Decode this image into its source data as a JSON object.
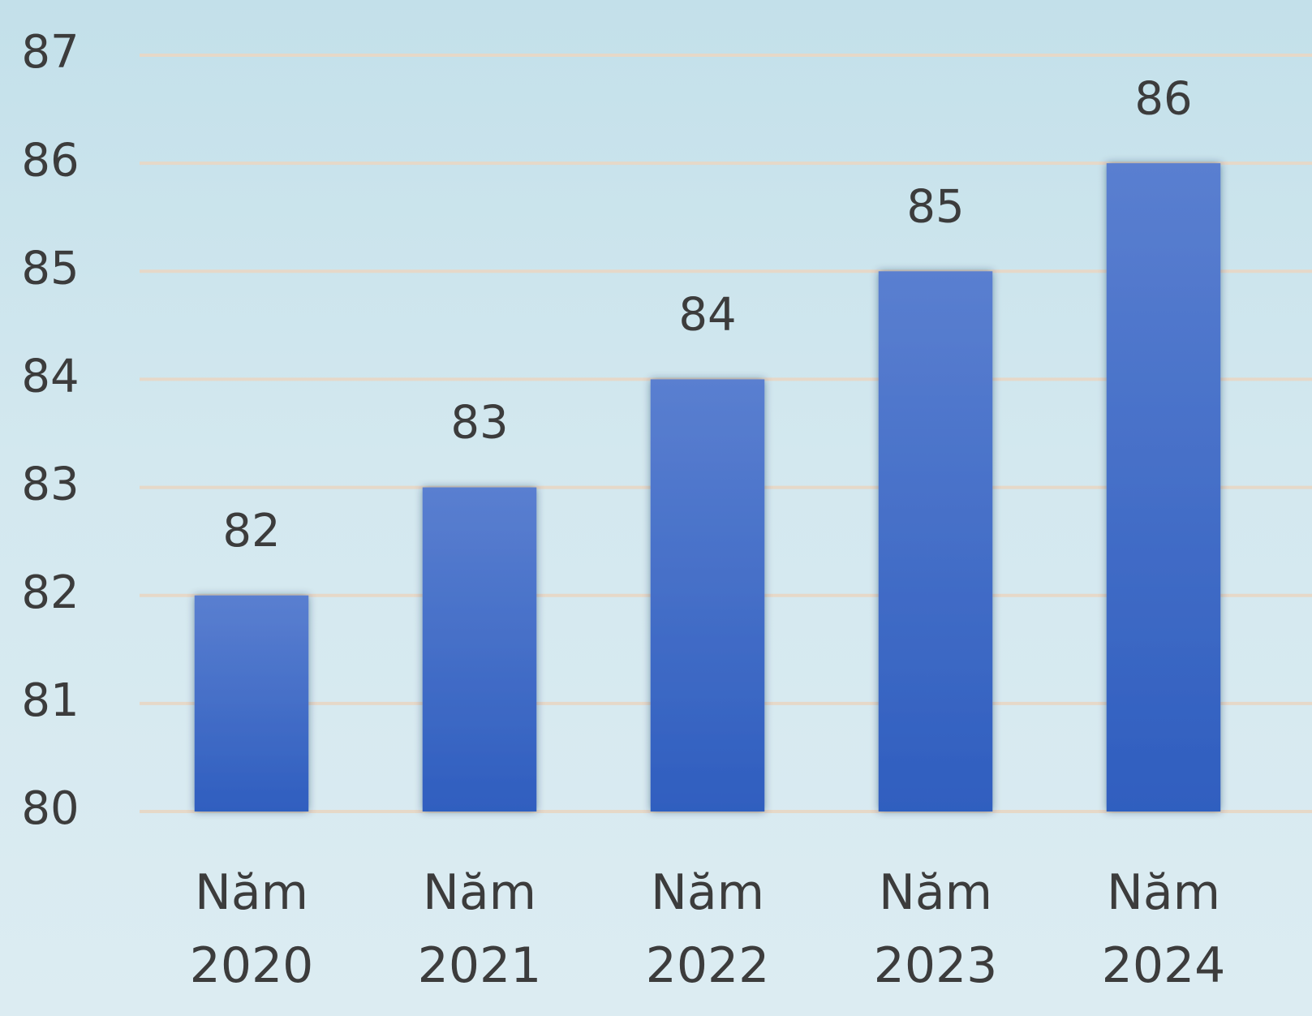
{
  "chart_data": {
    "type": "bar",
    "categories": [
      "Năm 2020",
      "Năm 2021",
      "Năm 2022",
      "Năm 2023",
      "Năm 2024"
    ],
    "values": [
      82,
      83,
      84,
      85,
      86
    ],
    "color": "#3a63c4",
    "ylim": [
      80,
      87
    ],
    "yticks": [
      80,
      81,
      82,
      83,
      84,
      85,
      86,
      87
    ],
    "grid": true
  }
}
